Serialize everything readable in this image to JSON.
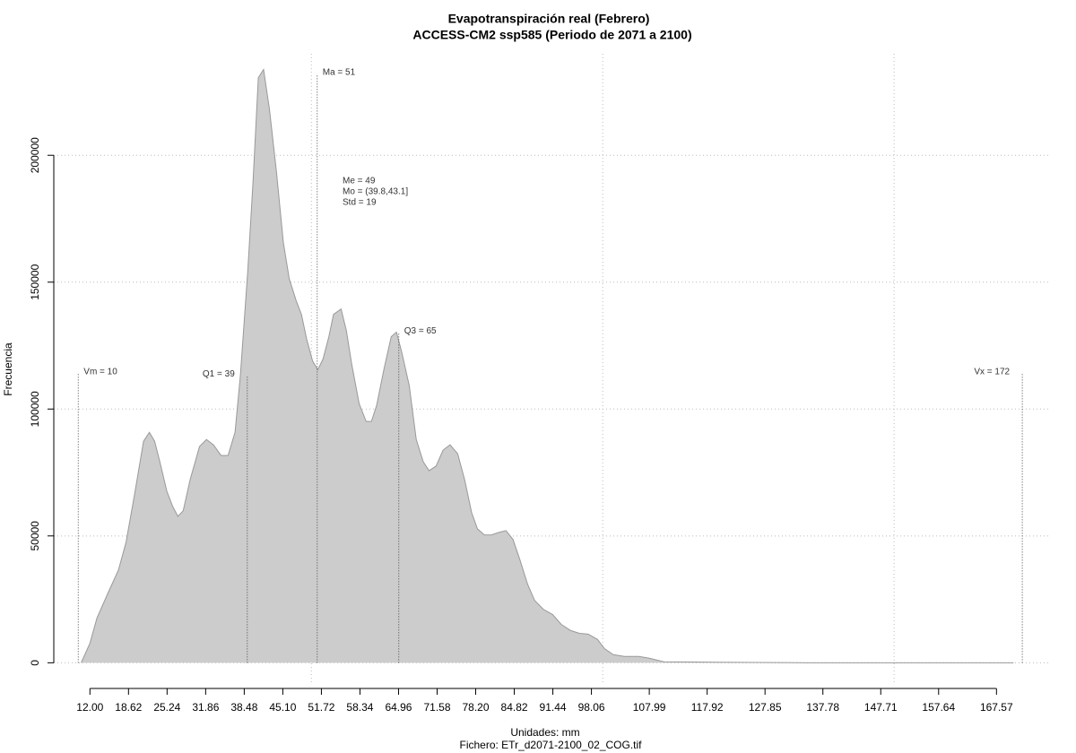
{
  "chart_data": {
    "type": "area",
    "title": "Evapotranspiración real (Febrero)",
    "subtitle": "ACCESS-CM2 ssp585 (Periodo de 2071 a 2100)",
    "xlabel": "Unidades: mm",
    "caption": "Fichero: ETr_d2071-2100_02_COG.tif",
    "ylabel": "Frecuencia",
    "color": "#cccccc",
    "line_color": "#999999",
    "grid": true,
    "x": [
      10.5,
      12,
      13.2,
      15.1,
      16.9,
      18.2,
      19.7,
      21.2,
      22.2,
      23.1,
      24.0,
      25.2,
      26.2,
      27.1,
      28.0,
      29.2,
      30.8,
      32.0,
      33.2,
      34.5,
      35.7,
      36.9,
      37.8,
      39.1,
      40.0,
      40.9,
      41.8,
      42.8,
      44.0,
      45.2,
      46.2,
      47.4,
      48.3,
      49.2,
      50.2,
      51.1,
      52.0,
      53.0,
      53.8,
      55.1,
      56.0,
      56.9,
      58.2,
      59.4,
      60.3,
      61.2,
      62.5,
      63.7,
      64.6,
      65.5,
      66.8,
      68.0,
      69.2,
      70.2,
      71.4,
      72.6,
      73.8,
      75.1,
      76.3,
      77.5,
      78.5,
      79.7,
      80.9,
      82.2,
      83.4,
      84.6,
      85.8,
      87.1,
      88.3,
      89.8,
      91.4,
      92.9,
      94.5,
      96.0,
      97.5,
      99.1,
      100.3,
      101.8,
      103.7,
      106.2,
      108.0,
      110.5,
      119.7,
      135.1,
      170.5
    ],
    "values": [
      0,
      7700,
      17600,
      27500,
      36600,
      47500,
      66900,
      87300,
      90800,
      87300,
      79200,
      67600,
      61600,
      57700,
      59900,
      72200,
      85200,
      88000,
      85900,
      81700,
      81700,
      90800,
      112700,
      154900,
      190100,
      230600,
      233800,
      218300,
      193700,
      165500,
      151400,
      142600,
      137300,
      127500,
      119000,
      115500,
      119700,
      128500,
      137300,
      139400,
      131000,
      118000,
      102100,
      95100,
      95100,
      101400,
      116200,
      128500,
      130300,
      122500,
      109200,
      88000,
      79200,
      75700,
      77500,
      83800,
      85900,
      82400,
      72200,
      59200,
      52800,
      50400,
      50400,
      51400,
      52100,
      48600,
      40500,
      31000,
      24600,
      21100,
      19000,
      15100,
      12700,
      11600,
      11300,
      9200,
      5600,
      3200,
      2500,
      2500,
      1800,
      400,
      200,
      0,
      0
    ],
    "xlim": [
      5.8,
      176.6
    ],
    "ylim": [
      -8000,
      240000
    ],
    "xticks": [
      {
        "value": 12,
        "label": "12.00"
      },
      18.62,
      25.24,
      31.86,
      38.48,
      {
        "value": 45.1,
        "label": "45.10"
      },
      51.72,
      58.34,
      64.96,
      71.58,
      {
        "value": 78.2,
        "label": "78.20"
      },
      84.82,
      91.44,
      98.06,
      107.99,
      117.92,
      127.85,
      137.78,
      147.71,
      157.64,
      167.57
    ],
    "xgrid": [
      50,
      100,
      150
    ],
    "yticks": [
      0,
      50000,
      100000,
      150000,
      200000
    ],
    "annotations": [
      {
        "label": "Vm = 10",
        "x": 10,
        "y": 114000
      },
      {
        "label": "Q1 = 39",
        "x": 39,
        "y": 113000
      },
      {
        "label": "Ma = 51",
        "x": 51,
        "y": 232000
      },
      {
        "label": "Q3 = 65",
        "x": 65,
        "y": 130000
      },
      {
        "label": "Vx = 172",
        "x": 172,
        "y": 114000
      }
    ],
    "stats": [
      "Me = 49",
      "Mo = (39.8,43.1]",
      "Std = 19"
    ]
  }
}
